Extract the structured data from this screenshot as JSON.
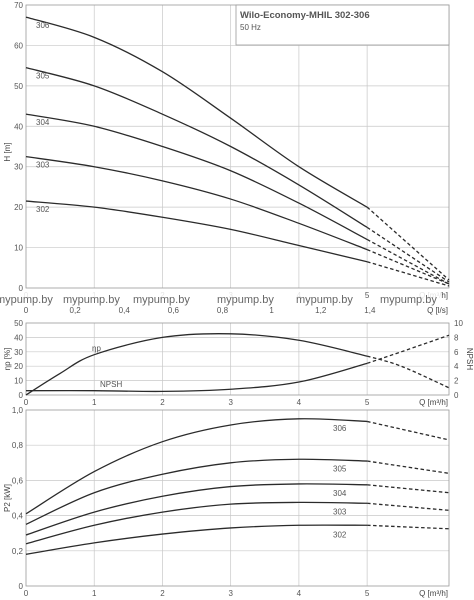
{
  "watermarks": [
    "mypump.by",
    "mypump.by",
    "mypump.by",
    "mypump.by",
    "mypump.by",
    "mypump.by"
  ],
  "chart_data": [
    {
      "type": "line",
      "title": "Wilo-Economy-MHIL 302-306",
      "subtitle": "50 Hz",
      "ylabel": "H [m]",
      "xlabel_top": "Q [m³/h]",
      "xlabel_bottom": "Q [l/s]",
      "xlim": [
        0,
        6.2
      ],
      "ylim": [
        0,
        70
      ],
      "y_ticks": [
        0,
        10,
        20,
        30,
        40,
        50,
        60,
        70
      ],
      "x_ticks_m3h": [
        0,
        1,
        2,
        3,
        4,
        5
      ],
      "x_ticks_ls": [
        "0",
        "0,2",
        "0,4",
        "0,6",
        "0,8",
        "1",
        "1,2",
        "1,4"
      ],
      "grid": true,
      "series": [
        {
          "name": "306",
          "x": [
            0,
            1,
            2,
            3,
            4,
            5,
            6.2
          ],
          "y": [
            67,
            62,
            53.5,
            42,
            30,
            20,
            2
          ],
          "solid_until": 5
        },
        {
          "name": "305",
          "x": [
            0,
            1,
            2,
            3,
            4,
            5,
            6.2
          ],
          "y": [
            54.5,
            50,
            43,
            35,
            25.5,
            15,
            1.5
          ],
          "solid_until": 5
        },
        {
          "name": "304",
          "x": [
            0,
            1,
            2,
            3,
            4,
            5,
            6.2
          ],
          "y": [
            43,
            40,
            35,
            29,
            21,
            12,
            1
          ],
          "solid_until": 5
        },
        {
          "name": "303",
          "x": [
            0,
            1,
            2,
            3,
            4,
            5,
            6.2
          ],
          "y": [
            32.5,
            30,
            26.5,
            22,
            16,
            9.5,
            1
          ],
          "solid_until": 5
        },
        {
          "name": "302",
          "x": [
            0,
            1,
            2,
            3,
            4,
            5,
            6.2
          ],
          "y": [
            21.5,
            20,
            17.5,
            14.5,
            10.5,
            6.5,
            0.5
          ],
          "solid_until": 5
        }
      ]
    },
    {
      "type": "line",
      "ylabel_left": "ηp [%]",
      "ylabel_right": "NPSH",
      "xlabel": "Q [m³/h]",
      "xlim": [
        0,
        6.2
      ],
      "ylim_left": [
        0,
        50
      ],
      "ylim_right": [
        0,
        10
      ],
      "y_ticks_left": [
        0,
        10,
        20,
        30,
        40,
        50
      ],
      "y_ticks_right": [
        0,
        2,
        4,
        6,
        8,
        10
      ],
      "x_ticks": [
        0,
        1,
        2,
        3,
        4,
        5
      ],
      "grid": true,
      "series": [
        {
          "name": "ηp",
          "axis": "left",
          "x": [
            0,
            0.5,
            1,
            2,
            3,
            4,
            5,
            5.5,
            6.2
          ],
          "y": [
            0,
            15,
            28,
            40,
            42.5,
            38,
            27,
            20,
            5
          ],
          "solid_until": 5
        },
        {
          "name": "NPSH",
          "axis": "right",
          "x": [
            0,
            1,
            2,
            3,
            4,
            5,
            5.5,
            6.2
          ],
          "y": [
            0.6,
            0.6,
            0.5,
            0.8,
            1.8,
            4.4,
            6,
            8.3
          ],
          "solid_until": 5
        }
      ]
    },
    {
      "type": "line",
      "ylabel": "P2 [kW]",
      "xlabel": "Q [m³/h]",
      "xlim": [
        0,
        6.2
      ],
      "ylim": [
        0,
        1.0
      ],
      "y_ticks": [
        "0",
        "0,2",
        "0,4",
        "0,6",
        "0,8",
        "1,0"
      ],
      "x_ticks": [
        0,
        1,
        2,
        3,
        4,
        5
      ],
      "grid": true,
      "series": [
        {
          "name": "306",
          "x": [
            0,
            1,
            2,
            3,
            4,
            5,
            6.2
          ],
          "y": [
            0.41,
            0.65,
            0.82,
            0.915,
            0.95,
            0.935,
            0.83
          ],
          "solid_until": 5
        },
        {
          "name": "305",
          "x": [
            0,
            1,
            2,
            3,
            4,
            5,
            6.2
          ],
          "y": [
            0.35,
            0.53,
            0.635,
            0.7,
            0.72,
            0.71,
            0.64
          ],
          "solid_until": 5
        },
        {
          "name": "304",
          "x": [
            0,
            1,
            2,
            3,
            4,
            5,
            6.2
          ],
          "y": [
            0.29,
            0.42,
            0.51,
            0.565,
            0.58,
            0.575,
            0.53
          ],
          "solid_until": 5
        },
        {
          "name": "303",
          "x": [
            0,
            1,
            2,
            3,
            4,
            5,
            6.2
          ],
          "y": [
            0.24,
            0.345,
            0.42,
            0.465,
            0.475,
            0.47,
            0.43
          ],
          "solid_until": 5
        },
        {
          "name": "302",
          "x": [
            0,
            1,
            2,
            3,
            4,
            5,
            6.2
          ],
          "y": [
            0.18,
            0.245,
            0.295,
            0.33,
            0.345,
            0.345,
            0.325
          ],
          "solid_until": 5
        }
      ]
    }
  ]
}
